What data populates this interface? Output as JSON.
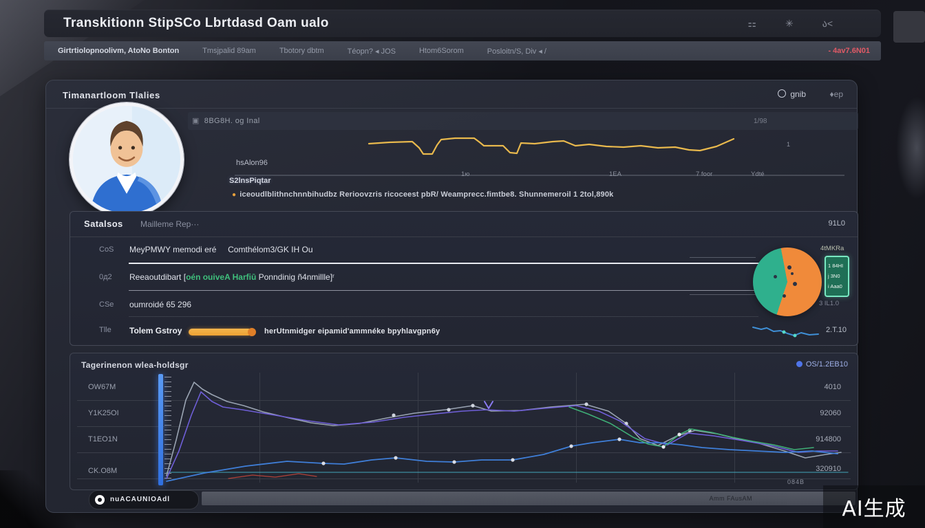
{
  "header": {
    "title": "Transkitionn  StipSCo Lbrtdasd Oam ualo",
    "icons": [
      {
        "name": "ornament-badge-icon",
        "glyph": "⚏"
      },
      {
        "name": "seal-icon",
        "glyph": "✳"
      },
      {
        "name": "user-cursor-icon",
        "glyph": "ა<"
      }
    ]
  },
  "nav": {
    "items": [
      "Girtrtiolopnoolivm, AtoNo Bonton",
      "Tmsjpalid 89am",
      "Tbotory dbtm",
      "Téopn? ◂ JOS",
      "Htom6Sorom",
      "Posloitn/S, Div ◂ /"
    ],
    "alert": "- 4av7.6N01"
  },
  "panel": {
    "title": "Timanartloom  Tlalies",
    "refresh_label": "gnib",
    "pin_label": "♦ep"
  },
  "overview": {
    "header_label": "8BG8H. og Inal",
    "page_indicator": "1/98",
    "right_mark": "1",
    "label_primary": "hsAlon96",
    "label_secondary": "S2lnsPiqtar",
    "caption": "iceoudlblithnchnnbihudbz Rerioovzris ricoceest pbR/ Weamprecc.fimtbe8. Shunnemeroil 1 2tol,890k"
  },
  "stats": {
    "title": "Satalsos",
    "subtitle": "Mailleme Rep···",
    "header_value": "91L0",
    "rows": [
      {
        "key": "CoS",
        "text": "MeyPMWY memodi eré     Comthélom3/GK IH Ou"
      },
      {
        "key": "0д2",
        "parts": [
          "Reeaoutdibart [",
          "oén ouiveA Harfiū",
          " Ponndinig ñ4nmillle]ʳ"
        ]
      },
      {
        "key": "CSe",
        "text": "oumroidé 65 296"
      },
      {
        "key": "Tlle",
        "label": "Tolem Gstroy",
        "caption": "herUtnmidger eipamid'ammnéke bpyhlavgpn6y"
      }
    ],
    "legend": {
      "caption": "4tMKRa",
      "items": [
        "1 84HI",
        "j 3N0",
        "i Aaa0"
      ],
      "footer": "3 IL1.0"
    },
    "spark_value": "2.T.10"
  },
  "trend": {
    "title": "Tagerinenon  wlea-holdsgr",
    "link_label": "OS/1.2EB10",
    "y_labels": [
      "OW67M",
      "Y1K25OI",
      "T1EO1N",
      "CK.O8M"
    ],
    "y_values": [
      "4010",
      "92060",
      "914800",
      "320910"
    ],
    "corner_note": "084B"
  },
  "footer": {
    "chip_label": "nuACAUNIOAdl",
    "bar_text": "Amm FAusAM"
  },
  "watermark": "AI生成",
  "colors": {
    "accent_yellow": "#e9b94d",
    "accent_orange": "#f08a3a",
    "accent_teal": "#2fb08d",
    "accent_blue": "#3f7fd9",
    "accent_purple": "#6f5fd8",
    "alert_red": "#e05a66"
  },
  "chart_data": [
    {
      "id": "overview-line",
      "type": "line",
      "title": "overview activity line",
      "color": "#e9b94d",
      "area": [
        890,
        68
      ],
      "x_ticks": [
        "1ю",
        "1EA",
        "7 foor",
        "Ydté"
      ],
      "points": [
        [
          195,
          18
        ],
        [
          225,
          16
        ],
        [
          258,
          15
        ],
        [
          268,
          24
        ],
        [
          274,
          33
        ],
        [
          287,
          33
        ],
        [
          294,
          20
        ],
        [
          300,
          12
        ],
        [
          320,
          10
        ],
        [
          348,
          10
        ],
        [
          356,
          16
        ],
        [
          362,
          21
        ],
        [
          390,
          21
        ],
        [
          400,
          31
        ],
        [
          410,
          32
        ],
        [
          416,
          17
        ],
        [
          436,
          18
        ],
        [
          462,
          15
        ],
        [
          478,
          14
        ],
        [
          495,
          21
        ],
        [
          515,
          19
        ],
        [
          540,
          22
        ],
        [
          565,
          23
        ],
        [
          590,
          21
        ],
        [
          615,
          24
        ],
        [
          640,
          23
        ],
        [
          660,
          27
        ],
        [
          676,
          28
        ],
        [
          700,
          22
        ],
        [
          725,
          11
        ]
      ]
    },
    {
      "id": "status-pie",
      "type": "pie",
      "rotate": 198,
      "slices": [
        {
          "label": "teal-segment",
          "value": 42,
          "color": "#2fb08d"
        },
        {
          "label": "orange-segment",
          "value": 58,
          "color": "#f08a3a"
        }
      ]
    },
    {
      "id": "row-sparkline",
      "type": "line",
      "color": "#3f8fd6",
      "dot_color": "#54d8c8",
      "area": [
        100,
        30
      ],
      "points": [
        [
          2,
          8
        ],
        [
          14,
          11
        ],
        [
          22,
          9
        ],
        [
          32,
          14
        ],
        [
          42,
          13
        ],
        [
          52,
          17
        ],
        [
          62,
          20
        ],
        [
          72,
          16
        ],
        [
          84,
          19
        ],
        [
          97,
          18
        ]
      ],
      "dots": [
        [
          47,
          15
        ],
        [
          63,
          20
        ]
      ]
    },
    {
      "id": "trend-lines",
      "type": "line",
      "area": [
        990,
        160
      ],
      "grid": true,
      "axis_line": {
        "color": "#49c2d8",
        "points": [
          [
            0,
            143
          ],
          [
            990,
            143
          ]
        ]
      },
      "marker": {
        "color": "#8a7af0",
        "points": [
          [
            462,
            40
          ],
          [
            468,
            50
          ],
          [
            474,
            40
          ]
        ]
      },
      "series": [
        {
          "name": "gray-series",
          "color": "#9aa4b2",
          "width": 1.6,
          "points": [
            [
              0,
              148
            ],
            [
              14,
              96
            ],
            [
              28,
              38
            ],
            [
              40,
              12
            ],
            [
              52,
              22
            ],
            [
              66,
              30
            ],
            [
              88,
              40
            ],
            [
              112,
              46
            ],
            [
              140,
              55
            ],
            [
              178,
              64
            ],
            [
              210,
              71
            ],
            [
              242,
              75
            ],
            [
              280,
              72
            ],
            [
              320,
              64
            ],
            [
              360,
              57
            ],
            [
              405,
              52
            ],
            [
              445,
              46
            ],
            [
              472,
              54
            ],
            [
              515,
              53
            ],
            [
              558,
              48
            ],
            [
              608,
              44
            ],
            [
              642,
              54
            ],
            [
              668,
              72
            ],
            [
              688,
              94
            ],
            [
              714,
              104
            ],
            [
              742,
              90
            ],
            [
              768,
              82
            ],
            [
              800,
              87
            ],
            [
              824,
              93
            ],
            [
              858,
              100
            ],
            [
              898,
              112
            ],
            [
              928,
              122
            ],
            [
              958,
              117
            ],
            [
              980,
              114
            ]
          ],
          "dots": [
            [
              330,
              60
            ],
            [
              410,
              52
            ],
            [
              445,
              46
            ],
            [
              610,
              44
            ],
            [
              668,
              72
            ],
            [
              760,
              82
            ]
          ],
          "dot_color": "#cfd4de"
        },
        {
          "name": "purple-series",
          "color": "#6f5fd8",
          "width": 1.6,
          "points": [
            [
              0,
              152
            ],
            [
              18,
              112
            ],
            [
              36,
              60
            ],
            [
              50,
              26
            ],
            [
              66,
              40
            ],
            [
              82,
              48
            ],
            [
              110,
              52
            ],
            [
              158,
              60
            ],
            [
              205,
              68
            ],
            [
              250,
              74
            ],
            [
              300,
              70
            ],
            [
              345,
              63
            ],
            [
              390,
              58
            ],
            [
              430,
              54
            ],
            [
              465,
              52
            ],
            [
              505,
              54
            ],
            [
              548,
              50
            ],
            [
              595,
              46
            ],
            [
              628,
              54
            ],
            [
              658,
              68
            ],
            [
              695,
              94
            ],
            [
              728,
              103
            ],
            [
              758,
              86
            ],
            [
              795,
              90
            ],
            [
              838,
              97
            ],
            [
              878,
              104
            ],
            [
              918,
              114
            ],
            [
              945,
              112
            ],
            [
              975,
              112
            ]
          ]
        },
        {
          "name": "blue-series",
          "color": "#3f7fd9",
          "width": 1.8,
          "points": [
            [
              0,
              156
            ],
            [
              55,
              144
            ],
            [
              115,
              134
            ],
            [
              175,
              127
            ],
            [
              228,
              130
            ],
            [
              258,
              131
            ],
            [
              298,
              125
            ],
            [
              333,
              122
            ],
            [
              378,
              127
            ],
            [
              418,
              128
            ],
            [
              458,
              125
            ],
            [
              503,
              125
            ],
            [
              548,
              117
            ],
            [
              588,
              105
            ],
            [
              618,
              100
            ],
            [
              658,
              95
            ],
            [
              688,
              100
            ],
            [
              718,
              100
            ],
            [
              748,
              103
            ],
            [
              778,
              107
            ],
            [
              818,
              110
            ],
            [
              858,
              112
            ],
            [
              898,
              114
            ],
            [
              938,
              112
            ],
            [
              975,
              116
            ]
          ],
          "dots": [
            [
              228,
              130
            ],
            [
              333,
              122
            ],
            [
              418,
              128
            ],
            [
              503,
              125
            ],
            [
              588,
              105
            ],
            [
              658,
              95
            ]
          ],
          "dot_color": "#d9dde6"
        },
        {
          "name": "green-series",
          "color": "#3fae76",
          "width": 1.6,
          "points": [
            [
              585,
              48
            ],
            [
              612,
              58
            ],
            [
              645,
              72
            ],
            [
              678,
              92
            ],
            [
              700,
              102
            ],
            [
              722,
              106
            ],
            [
              745,
              88
            ],
            [
              762,
              80
            ],
            [
              792,
              85
            ],
            [
              822,
              92
            ],
            [
              852,
              98
            ],
            [
              882,
              103
            ],
            [
              912,
              110
            ],
            [
              940,
              107
            ]
          ],
          "dots": [
            [
              722,
              106
            ],
            [
              745,
              88
            ]
          ],
          "dot_color": "#e8ebf0"
        },
        {
          "name": "red-series",
          "color": "#c0453a",
          "width": 1.2,
          "opacity": 0.9,
          "points": [
            [
              90,
              152
            ],
            [
              125,
              147
            ],
            [
              158,
              150
            ],
            [
              192,
              145
            ],
            [
              218,
              149
            ]
          ]
        }
      ]
    }
  ]
}
